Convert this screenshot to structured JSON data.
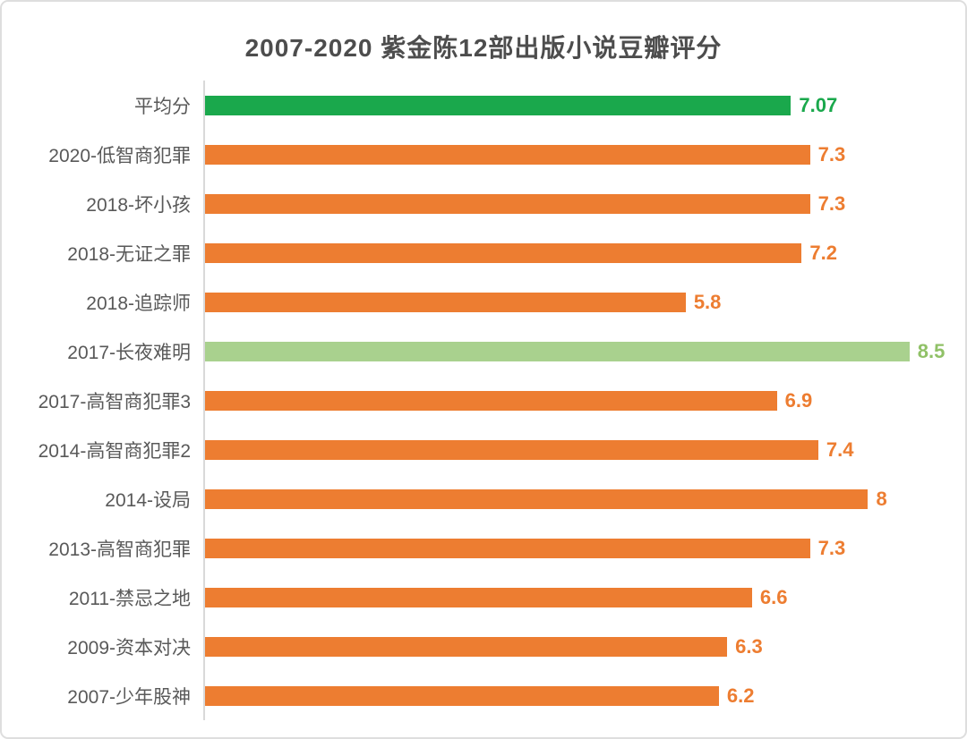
{
  "chart_data": {
    "type": "bar",
    "orientation": "horizontal",
    "title": "2007-2020 紫金陈12部出版小说豆瓣评分",
    "xlabel": "",
    "ylabel": "",
    "axis_max": 9.0,
    "grid": false,
    "legend": false,
    "categories": [
      "平均分",
      "2020-低智商犯罪",
      "2018-坏小孩",
      "2018-无证之罪",
      "2018-追踪师",
      "2017-长夜难明",
      "2017-高智商犯罪3",
      "2014-高智商犯罪2",
      "2014-设局",
      "2013-高智商犯罪",
      "2011-禁忌之地",
      "2009-资本对决",
      "2007-少年股神"
    ],
    "values": [
      7.07,
      7.3,
      7.3,
      7.2,
      5.8,
      8.5,
      6.9,
      7.4,
      8,
      7.3,
      6.6,
      6.3,
      6.2
    ],
    "value_labels": [
      "7.07",
      "7.3",
      "7.3",
      "7.2",
      "5.8",
      "8.5",
      "6.9",
      "7.4",
      "8",
      "7.3",
      "6.6",
      "6.3",
      "6.2"
    ],
    "bar_colors": [
      "#1aa84c",
      "#ed7d31",
      "#ed7d31",
      "#ed7d31",
      "#ed7d31",
      "#a9d18e",
      "#ed7d31",
      "#ed7d31",
      "#ed7d31",
      "#ed7d31",
      "#ed7d31",
      "#ed7d31",
      "#ed7d31"
    ],
    "value_label_colors": [
      "#1aa84c",
      "#ed7d31",
      "#ed7d31",
      "#ed7d31",
      "#ed7d31",
      "#90c167",
      "#ed7d31",
      "#ed7d31",
      "#ed7d31",
      "#ed7d31",
      "#ed7d31",
      "#ed7d31",
      "#ed7d31"
    ]
  },
  "colors": {
    "accent_orange": "#ed7d31",
    "accent_green": "#1aa84c",
    "accent_light_green": "#a9d18e",
    "title_text": "#4d4d4d",
    "label_text": "#595959",
    "axis_line": "#d9d9d9",
    "frame_border": "#dedede"
  }
}
